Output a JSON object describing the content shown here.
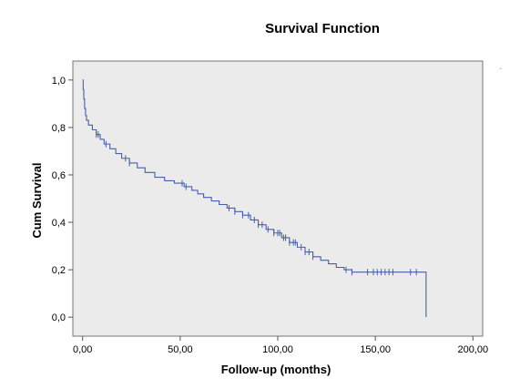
{
  "chart_data": {
    "type": "line",
    "title": "Survival Function",
    "xlabel": "Follow-up (months)",
    "ylabel": "Cum Survival",
    "xlim": [
      -5,
      205
    ],
    "ylim": [
      -0.08,
      1.08
    ],
    "x_ticks": [
      0,
      50,
      100,
      150,
      200
    ],
    "x_tick_labels": [
      "0,00",
      "50,00",
      "100,00",
      "150,00",
      "200,00"
    ],
    "y_ticks": [
      0,
      0.2,
      0.4,
      0.6,
      0.8,
      1.0
    ],
    "y_tick_labels": [
      "0,0",
      "0,2",
      "0,4",
      "0,6",
      "0,8",
      "1,0"
    ],
    "grid": false,
    "plot_background": "#ebebeb",
    "line_color": "#4a5fa5",
    "series": [
      {
        "step": true,
        "points": [
          [
            0,
            1.0
          ],
          [
            0.3,
            0.96
          ],
          [
            0.6,
            0.92
          ],
          [
            1,
            0.88
          ],
          [
            1.5,
            0.85
          ],
          [
            2,
            0.83
          ],
          [
            3,
            0.81
          ],
          [
            5,
            0.79
          ],
          [
            7,
            0.77
          ],
          [
            9,
            0.75
          ],
          [
            11,
            0.73
          ],
          [
            14,
            0.71
          ],
          [
            17,
            0.69
          ],
          [
            20,
            0.67
          ],
          [
            24,
            0.65
          ],
          [
            28,
            0.63
          ],
          [
            32,
            0.61
          ],
          [
            37,
            0.59
          ],
          [
            42,
            0.575
          ],
          [
            47,
            0.565
          ],
          [
            52,
            0.55
          ],
          [
            56,
            0.535
          ],
          [
            59,
            0.52
          ],
          [
            62,
            0.505
          ],
          [
            66,
            0.49
          ],
          [
            70,
            0.475
          ],
          [
            74,
            0.46
          ],
          [
            78,
            0.445
          ],
          [
            82,
            0.43
          ],
          [
            86,
            0.41
          ],
          [
            90,
            0.39
          ],
          [
            94,
            0.37
          ],
          [
            98,
            0.355
          ],
          [
            102,
            0.335
          ],
          [
            106,
            0.315
          ],
          [
            110,
            0.295
          ],
          [
            114,
            0.275
          ],
          [
            118,
            0.255
          ],
          [
            122,
            0.24
          ],
          [
            126,
            0.225
          ],
          [
            130,
            0.21
          ],
          [
            134,
            0.2
          ],
          [
            138,
            0.19
          ],
          [
            176,
            0.19
          ],
          [
            176,
            0.0
          ]
        ],
        "censored": [
          7,
          8,
          12,
          22,
          24,
          51,
          53,
          75,
          78,
          82,
          85,
          88,
          90,
          92,
          95,
          98,
          100,
          101,
          103,
          104,
          106,
          108,
          109,
          112,
          114,
          116,
          118,
          135,
          138,
          146,
          149,
          151,
          153,
          155,
          157,
          159,
          168,
          171
        ]
      }
    ]
  }
}
